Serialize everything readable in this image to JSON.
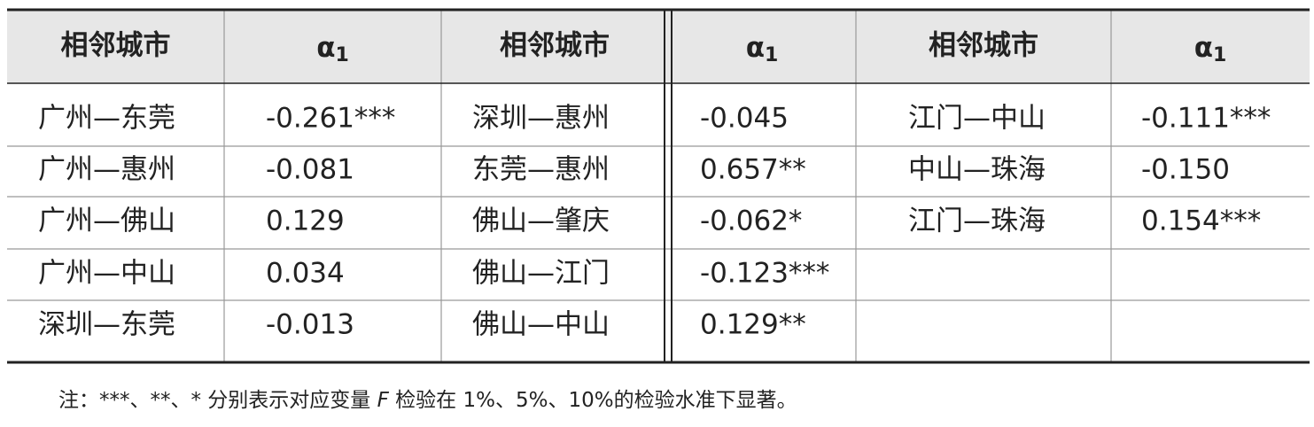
{
  "table": {
    "header": [
      "相邻城市",
      {
        "symbol": "α",
        "subscript": "1"
      },
      "相邻城市",
      {
        "symbol": "α",
        "subscript": "1"
      },
      "相邻城市",
      {
        "symbol": "α",
        "subscript": "1"
      }
    ],
    "rows": [
      [
        "广州—东莞",
        "-0.261***",
        "深圳—惠州",
        "-0.045",
        "江门—中山",
        "-0.111***"
      ],
      [
        "广州—惠州",
        "-0.081",
        "东莞—惠州",
        "0.657**",
        "中山—珠海",
        "-0.150"
      ],
      [
        "广州—佛山",
        "0.129",
        "佛山—肇庆",
        "-0.062*",
        "江门—珠海",
        "0.154***"
      ],
      [
        "广州—中山",
        "0.034",
        "佛山—江门",
        "-0.123***",
        null,
        null
      ],
      [
        "深圳—东莞",
        "-0.013",
        "佛山—中山",
        "0.129**",
        null,
        null
      ]
    ]
  },
  "note": {
    "prefix": "注：***、**、* 分别表示对应变量 ",
    "variable": "F",
    "suffix": " 检验在 1%、5%、10%的检验水准下显著。"
  }
}
